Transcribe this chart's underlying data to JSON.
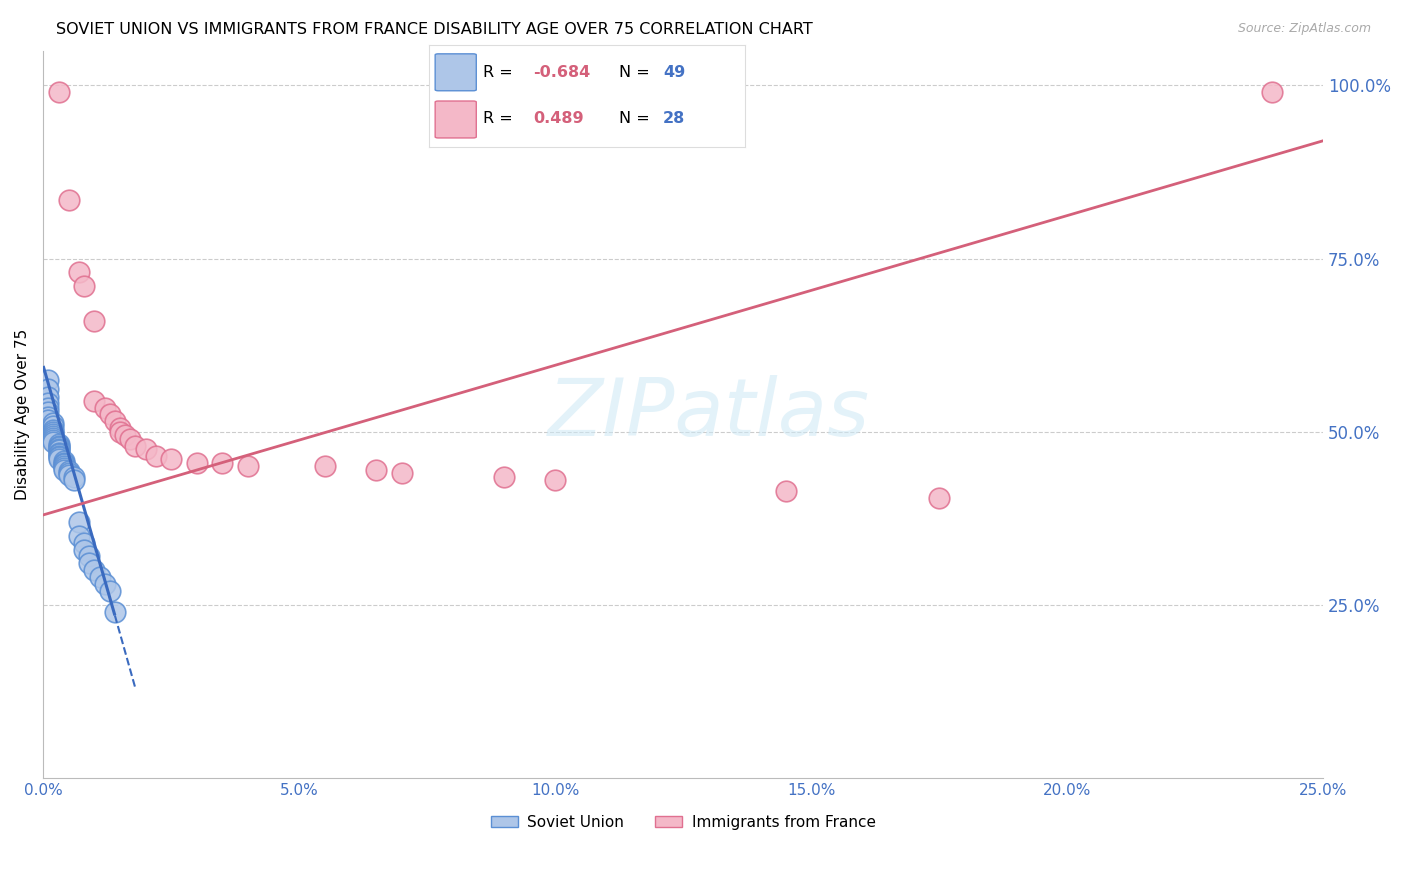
{
  "title": "SOVIET UNION VS IMMIGRANTS FROM FRANCE DISABILITY AGE OVER 75 CORRELATION CHART",
  "source": "Source: ZipAtlas.com",
  "ylabel": "Disability Age Over 75",
  "background_color": "#ffffff",
  "watermark_text": "ZIPatlas",
  "legend_su": {
    "R": "-0.684",
    "N": "49",
    "fill": "#aec6e8",
    "edge": "#5b8fd4"
  },
  "legend_fr": {
    "R": "0.489",
    "N": "28",
    "fill": "#f4b8c8",
    "edge": "#e07090"
  },
  "su_line_color": "#3a6abf",
  "fr_line_color": "#d4607a",
  "xmin": 0.0,
  "xmax": 0.25,
  "ymin": 0.0,
  "ymax": 1.05,
  "xticks": [
    0.0,
    0.05,
    0.1,
    0.15,
    0.2,
    0.25
  ],
  "yticks": [
    0.25,
    0.5,
    0.75,
    1.0
  ],
  "soviet_union_points": [
    [
      0.001,
      0.575
    ],
    [
      0.001,
      0.562
    ],
    [
      0.001,
      0.55
    ],
    [
      0.001,
      0.542
    ],
    [
      0.001,
      0.535
    ],
    [
      0.001,
      0.528
    ],
    [
      0.001,
      0.522
    ],
    [
      0.001,
      0.517
    ],
    [
      0.002,
      0.513
    ],
    [
      0.002,
      0.508
    ],
    [
      0.002,
      0.503
    ],
    [
      0.002,
      0.5
    ],
    [
      0.002,
      0.497
    ],
    [
      0.002,
      0.494
    ],
    [
      0.002,
      0.491
    ],
    [
      0.002,
      0.488
    ],
    [
      0.002,
      0.485
    ],
    [
      0.003,
      0.483
    ],
    [
      0.003,
      0.48
    ],
    [
      0.003,
      0.478
    ],
    [
      0.003,
      0.475
    ],
    [
      0.003,
      0.473
    ],
    [
      0.003,
      0.47
    ],
    [
      0.003,
      0.468
    ],
    [
      0.003,
      0.465
    ],
    [
      0.003,
      0.463
    ],
    [
      0.003,
      0.46
    ],
    [
      0.004,
      0.458
    ],
    [
      0.004,
      0.455
    ],
    [
      0.004,
      0.453
    ],
    [
      0.004,
      0.45
    ],
    [
      0.004,
      0.448
    ],
    [
      0.004,
      0.445
    ],
    [
      0.005,
      0.443
    ],
    [
      0.005,
      0.44
    ],
    [
      0.005,
      0.438
    ],
    [
      0.006,
      0.435
    ],
    [
      0.006,
      0.43
    ],
    [
      0.007,
      0.37
    ],
    [
      0.007,
      0.35
    ],
    [
      0.008,
      0.34
    ],
    [
      0.008,
      0.33
    ],
    [
      0.009,
      0.32
    ],
    [
      0.009,
      0.31
    ],
    [
      0.01,
      0.3
    ],
    [
      0.011,
      0.29
    ],
    [
      0.012,
      0.28
    ],
    [
      0.013,
      0.27
    ],
    [
      0.014,
      0.24
    ]
  ],
  "france_points": [
    [
      0.003,
      0.99
    ],
    [
      0.005,
      0.835
    ],
    [
      0.007,
      0.73
    ],
    [
      0.008,
      0.71
    ],
    [
      0.01,
      0.66
    ],
    [
      0.01,
      0.545
    ],
    [
      0.012,
      0.535
    ],
    [
      0.013,
      0.525
    ],
    [
      0.014,
      0.515
    ],
    [
      0.015,
      0.505
    ],
    [
      0.015,
      0.5
    ],
    [
      0.016,
      0.495
    ],
    [
      0.017,
      0.49
    ],
    [
      0.018,
      0.48
    ],
    [
      0.02,
      0.475
    ],
    [
      0.022,
      0.465
    ],
    [
      0.025,
      0.46
    ],
    [
      0.03,
      0.455
    ],
    [
      0.035,
      0.455
    ],
    [
      0.04,
      0.45
    ],
    [
      0.055,
      0.45
    ],
    [
      0.065,
      0.445
    ],
    [
      0.07,
      0.44
    ],
    [
      0.09,
      0.435
    ],
    [
      0.1,
      0.43
    ],
    [
      0.145,
      0.415
    ],
    [
      0.175,
      0.405
    ],
    [
      0.24,
      0.99
    ]
  ],
  "su_line": {
    "x0": 0.0,
    "y0": 0.595,
    "x1": 0.014,
    "y1": 0.235,
    "xdash0": 0.014,
    "ydash0": 0.235,
    "xdash1": 0.018,
    "ydash1": 0.13
  },
  "fr_line": {
    "x0": 0.0,
    "y0": 0.38,
    "x1": 0.25,
    "y1": 0.92
  }
}
